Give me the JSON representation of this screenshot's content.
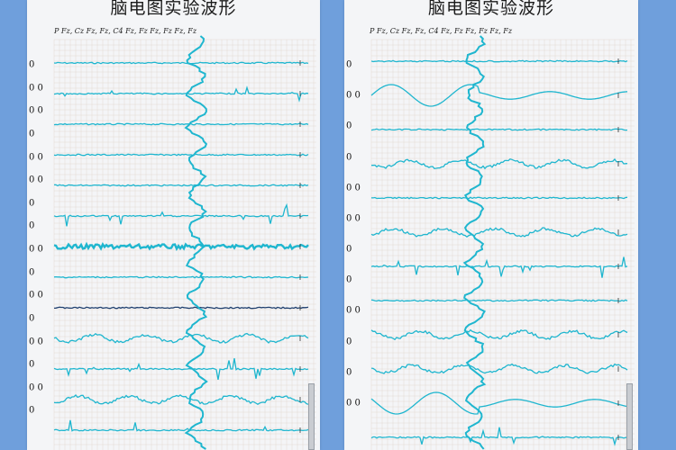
{
  "left_panel": {
    "title": "脑电图实验波形",
    "channel_labels": "P Fz, Cz Fz, Fz, C4 Fz, Fz Fz, Fz Fz, Fz",
    "lead_labels": [
      "0",
      "0 0",
      "0 0",
      "0",
      "0 0",
      "0 0",
      "0",
      "0",
      "0 0",
      "0",
      "0 0",
      "0",
      "0 0",
      "0",
      "0 0",
      "0"
    ]
  },
  "right_panel": {
    "title": "脑电图实验波形",
    "channel_labels": "P Fz, Cz Fz, Fz, C4 Fz, Fz Fz, Fz Fz, Fz",
    "lead_labels": [
      "0",
      "0 0",
      "0",
      "0",
      "0 0",
      "0 0",
      "0",
      "0",
      "0 0",
      "0",
      "0",
      "0 0"
    ]
  },
  "colors": {
    "trace_cyan": "#1fb6cf",
    "trace_dark": "#1f3f6e",
    "grid": "#e2d9d2",
    "background": "#6f9fdc"
  }
}
